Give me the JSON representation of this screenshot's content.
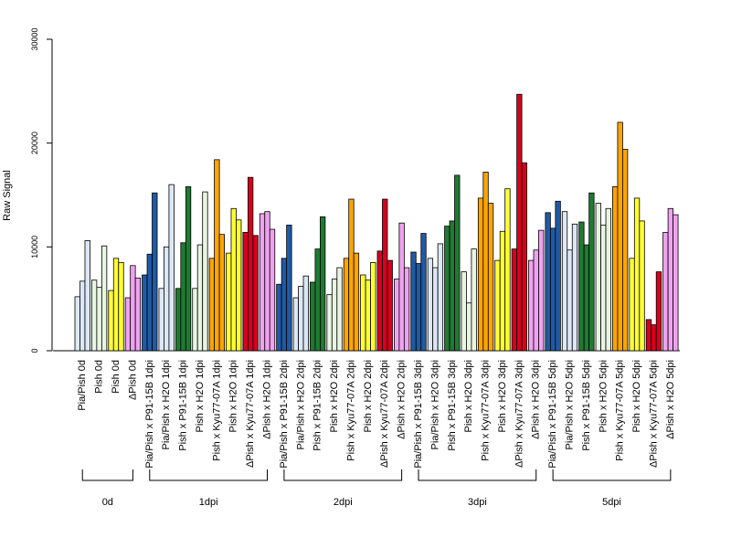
{
  "chart_data": {
    "type": "bar",
    "ylabel": "Raw Signal",
    "xlabel": "",
    "ylim": [
      0,
      30000
    ],
    "yticks": [
      0,
      10000,
      20000,
      30000
    ],
    "grid": false,
    "bars_per_category": 3,
    "categories": [
      {
        "label": "Pia/Pish 0d",
        "color": "#dce8f5",
        "values": [
          5200,
          6700,
          10600
        ]
      },
      {
        "label": "Pish 0d",
        "color": "#e8f5e1",
        "values": [
          6800,
          6100,
          10100
        ]
      },
      {
        "label": "Pish 0d",
        "color": "#ffff33",
        "values": [
          5800,
          8900,
          8500
        ]
      },
      {
        "label": "ΔPish 0d",
        "color": "#f0a2f0",
        "values": [
          5100,
          8200,
          7000
        ]
      },
      {
        "label": "Pia/Pish x P91-15B 1dpi",
        "color": "#1f5aa6",
        "values": [
          7300,
          9300,
          15200
        ]
      },
      {
        "label": "Pia/Pish x H2O 1dpi",
        "color": "#dce8f5",
        "values": [
          6000,
          10000,
          16000
        ]
      },
      {
        "label": "Pish x P91-15B 1dpi",
        "color": "#1f7a32",
        "values": [
          6000,
          10400,
          15800
        ]
      },
      {
        "label": "Pish x H2O 1dpi",
        "color": "#e8f5e1",
        "values": [
          6000,
          10200,
          15300
        ]
      },
      {
        "label": "Pish x Kyu77-07A 1dpi",
        "color": "#ffa500",
        "values": [
          8900,
          18400,
          11200
        ]
      },
      {
        "label": "Pish x H2O 1dpi",
        "color": "#ffff33",
        "values": [
          9400,
          13700,
          12600
        ]
      },
      {
        "label": "ΔPish x Kyu77-07A 1dpi",
        "color": "#d7001e",
        "values": [
          11400,
          16700,
          11100
        ]
      },
      {
        "label": "ΔPish x H2O 1dpi",
        "color": "#f0a2f0",
        "values": [
          13200,
          13400,
          11700
        ]
      },
      {
        "label": "Pia/Pish x P91-15B 2dpi",
        "color": "#1f5aa6",
        "values": [
          6400,
          8900,
          12100
        ]
      },
      {
        "label": "Pia/Pish x H2O 2dpi",
        "color": "#dce8f5",
        "values": [
          5100,
          6200,
          7200
        ]
      },
      {
        "label": "Pish x P91-15B 2dpi",
        "color": "#1f7a32",
        "values": [
          6600,
          9800,
          12900
        ]
      },
      {
        "label": "Pish x H2O 2dpi",
        "color": "#e8f5e1",
        "values": [
          5400,
          6900,
          8000
        ]
      },
      {
        "label": "Pish x Kyu77-07A 2dpi",
        "color": "#ffa500",
        "values": [
          8900,
          14600,
          9400
        ]
      },
      {
        "label": "Pish x H2O 2dpi",
        "color": "#ffff33",
        "values": [
          7300,
          6800,
          8500
        ]
      },
      {
        "label": "ΔPish x Kyu77-07A 2dpi",
        "color": "#d7001e",
        "values": [
          9600,
          14600,
          8700
        ]
      },
      {
        "label": "ΔPish x H2O 2dpi",
        "color": "#f0a2f0",
        "values": [
          6900,
          12300,
          8000
        ]
      },
      {
        "label": "Pia/Pish x P91-15B 3dpi",
        "color": "#1f5aa6",
        "values": [
          9500,
          8400,
          11300
        ]
      },
      {
        "label": "Pia/Pish x H2O 3dpi",
        "color": "#dce8f5",
        "values": [
          8900,
          8000,
          10300
        ]
      },
      {
        "label": "Pish x P91-15B 3dpi",
        "color": "#1f7a32",
        "values": [
          12000,
          12500,
          16900
        ]
      },
      {
        "label": "Pish x H2O 3dpi",
        "color": "#e8f5e1",
        "values": [
          7600,
          4600,
          9800
        ]
      },
      {
        "label": "Pish x Kyu77-07A 3dpi",
        "color": "#ffa500",
        "values": [
          14700,
          17200,
          14200
        ]
      },
      {
        "label": "Pish x H2O 3dpi",
        "color": "#ffff33",
        "values": [
          8700,
          11500,
          15600
        ]
      },
      {
        "label": "ΔPish x Kyu77-07A 3dpi",
        "color": "#d7001e",
        "values": [
          9800,
          24700,
          18100
        ]
      },
      {
        "label": "ΔPish x H2O 3dpi",
        "color": "#f0a2f0",
        "values": [
          8700,
          9700,
          11600
        ]
      },
      {
        "label": "Pia/Pish x P91-15B 5dpi",
        "color": "#1f5aa6",
        "values": [
          13300,
          11800,
          14400
        ]
      },
      {
        "label": "Pia/Pish x H2O 5dpi",
        "color": "#dce8f5",
        "values": [
          13400,
          9700,
          12200
        ]
      },
      {
        "label": "Pish x P91-15B 5dpi",
        "color": "#1f7a32",
        "values": [
          12400,
          10200,
          15200
        ]
      },
      {
        "label": "Pish x H2O 5dpi",
        "color": "#e8f5e1",
        "values": [
          14200,
          12100,
          13700
        ]
      },
      {
        "label": "Pish x Kyu77-07A 5dpi",
        "color": "#ffa500",
        "values": [
          15800,
          22000,
          19400
        ]
      },
      {
        "label": "Pish x H2O 5dpi",
        "color": "#ffff33",
        "values": [
          8900,
          14700,
          12500
        ]
      },
      {
        "label": "ΔPish x Kyu77-07A 5dpi",
        "color": "#d7001e",
        "values": [
          3000,
          2500,
          7600
        ]
      },
      {
        "label": "ΔPish x H2O 5dpi",
        "color": "#f0a2f0",
        "values": [
          11400,
          13700,
          13100
        ]
      }
    ],
    "groups": [
      {
        "label": "0d",
        "start": 0,
        "end": 3
      },
      {
        "label": "1dpi",
        "start": 4,
        "end": 11
      },
      {
        "label": "2dpi",
        "start": 12,
        "end": 19
      },
      {
        "label": "3dpi",
        "start": 20,
        "end": 27
      },
      {
        "label": "5dpi",
        "start": 28,
        "end": 35
      }
    ]
  }
}
